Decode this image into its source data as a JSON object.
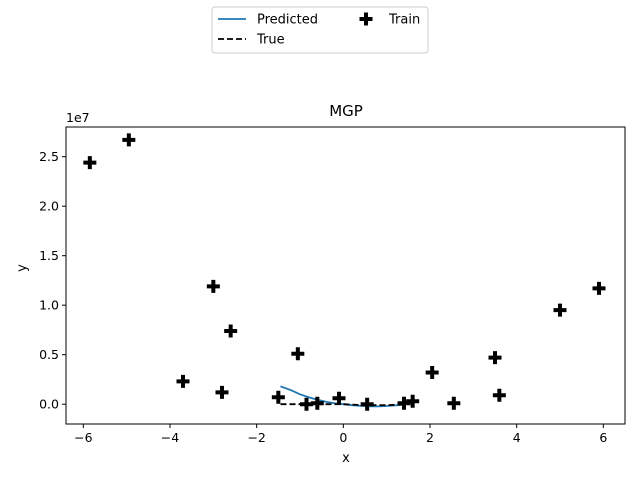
{
  "chart_data": {
    "type": "line",
    "title": "MGP",
    "xlabel": "x",
    "ylabel": "y",
    "y_offset_text": "1e7",
    "xlim": [
      -6.4,
      6.5
    ],
    "ylim": [
      -0.2,
      2.8
    ],
    "x_ticks": [
      -6,
      -4,
      -2,
      0,
      2,
      4,
      6
    ],
    "x_tick_labels": [
      "−6",
      "−4",
      "−2",
      "0",
      "2",
      "4",
      "6"
    ],
    "y_ticks": [
      0.0,
      0.5,
      1.0,
      1.5,
      2.0,
      2.5
    ],
    "y_tick_labels": [
      "0.0",
      "0.5",
      "1.0",
      "1.5",
      "2.0",
      "2.5"
    ],
    "legend_position": "top-center (above axes)",
    "grid": false,
    "series": [
      {
        "name": "Predicted",
        "kind": "line",
        "color": "#1f77b4",
        "x": [
          -1.45,
          -1.2,
          -1.0,
          -0.8,
          -0.6,
          -0.4,
          -0.2,
          0.0,
          0.2,
          0.4,
          0.6,
          0.8,
          1.0,
          1.2,
          1.4
        ],
        "y": [
          0.18,
          0.14,
          0.1,
          0.07,
          0.045,
          0.025,
          0.01,
          0.0,
          -0.01,
          -0.017,
          -0.022,
          -0.022,
          -0.018,
          -0.012,
          -0.005
        ]
      },
      {
        "name": "True",
        "kind": "dashed",
        "color": "#000000",
        "x": [
          -1.45,
          -1.0,
          -0.5,
          0.0,
          0.5,
          1.0,
          1.45
        ],
        "y": [
          0.0,
          0.0,
          0.0,
          0.0,
          -0.01,
          -0.01,
          0.0
        ]
      },
      {
        "name": "Train",
        "kind": "marker-plus",
        "color": "#000000",
        "x": [
          -5.85,
          -4.95,
          -3.7,
          -3.0,
          -2.8,
          -2.6,
          -1.5,
          -1.05,
          -0.85,
          -0.6,
          -0.1,
          0.55,
          1.4,
          1.6,
          2.05,
          2.55,
          3.5,
          3.6,
          5.0,
          5.9
        ],
        "y": [
          2.44,
          2.67,
          0.23,
          1.19,
          0.12,
          0.74,
          0.07,
          0.51,
          0.0,
          0.01,
          0.06,
          0.0,
          0.01,
          0.03,
          0.32,
          0.01,
          0.47,
          0.09,
          0.95,
          1.17
        ]
      }
    ]
  }
}
